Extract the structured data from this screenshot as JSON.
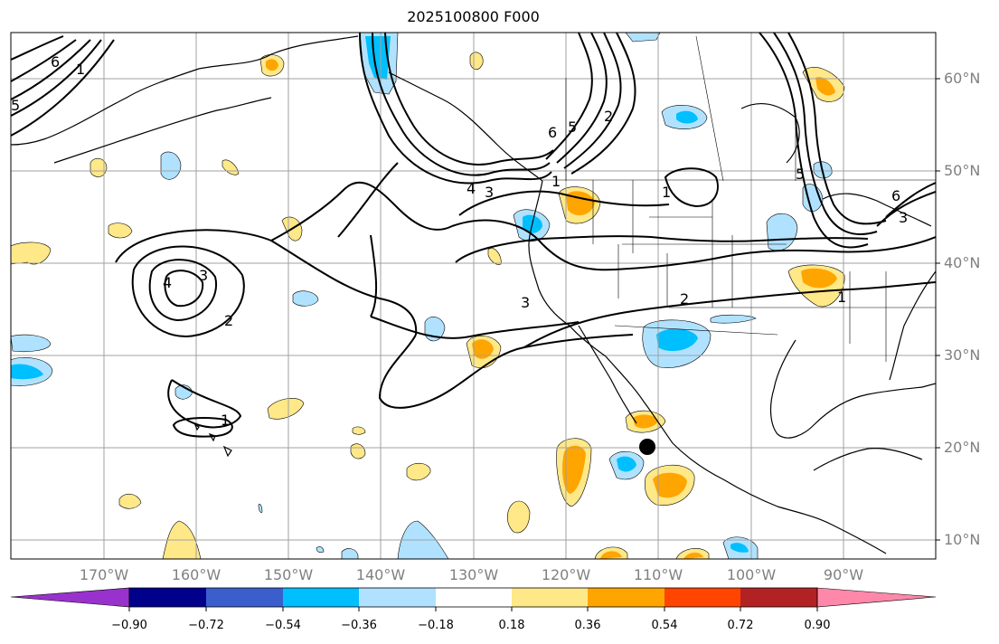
{
  "title": "2025100800 F000",
  "latitude_labels": [
    "60°N",
    "50°N",
    "40°N",
    "30°N",
    "20°N",
    "10°N"
  ],
  "longitude_labels": [
    "170°W",
    "160°W",
    "150°W",
    "140°W",
    "130°W",
    "120°W",
    "110°W",
    "100°W",
    "90°W"
  ],
  "colorbar": {
    "labels": [
      "−0.90",
      "−0.72",
      "−0.54",
      "−0.36",
      "−0.18",
      "0.18",
      "0.36",
      "0.54",
      "0.72",
      "0.90"
    ],
    "colors": [
      "#9932cc",
      "#00008b",
      "#3a5fcd",
      "#00bfff",
      "#b0e2ff",
      "#ffffff",
      "#ffe888",
      "#ffa500",
      "#ff4500",
      "#b22222",
      "#ff88aa"
    ]
  },
  "contour_labels": [
    "1",
    "2",
    "3",
    "4",
    "5",
    "6"
  ],
  "colors": {
    "grid": "#a0a0a0",
    "contour": "#000000",
    "coast": "#000000",
    "tick_text": "#808080"
  }
}
